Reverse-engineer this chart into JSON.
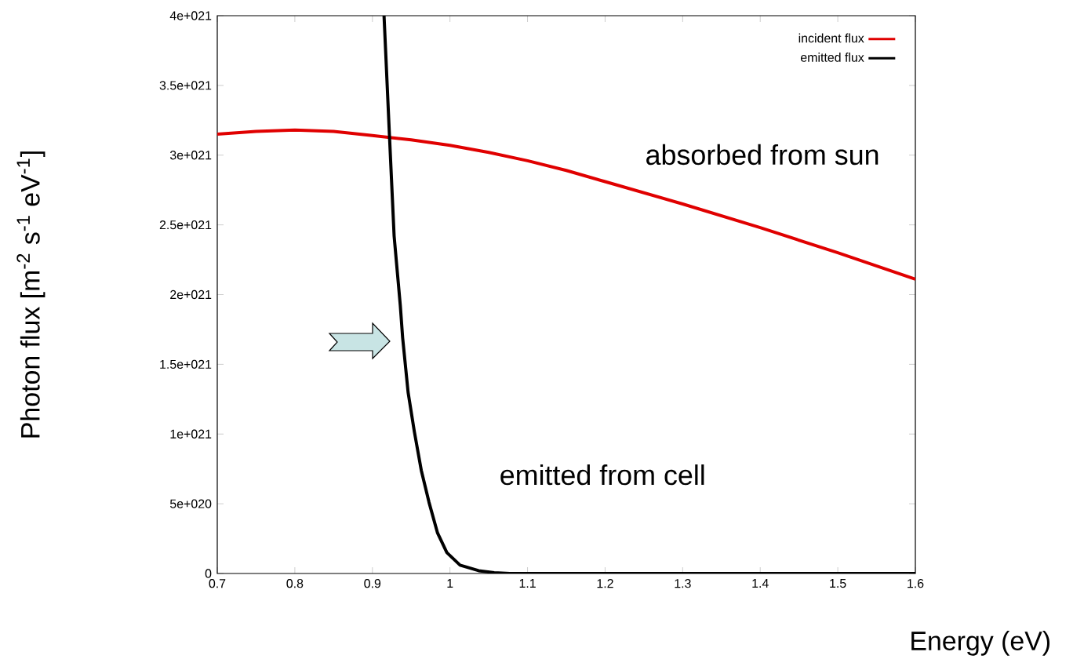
{
  "chart_data": {
    "type": "line",
    "xlabel": "Energy (eV)",
    "ylabel": "Photon flux [m$^{-2}$ s$^{-1}$ eV$^{-1}$]",
    "xlim": [
      0.7,
      1.6
    ],
    "ylim": [
      0,
      4e+21
    ],
    "xticks": [
      0.7,
      0.8,
      0.9,
      1,
      1.1,
      1.2,
      1.3,
      1.4,
      1.5,
      1.6
    ],
    "yticks": [
      0,
      {
        "value": 5e+20,
        "label": "5e+020"
      },
      {
        "value": 1e+21,
        "label": "1e+021"
      },
      {
        "value": 1.5e+21,
        "label": "1.5e+021"
      },
      {
        "value": 2e+21,
        "label": "2e+021"
      },
      {
        "value": 2.5e+21,
        "label": "2.5e+021"
      },
      {
        "value": 3e+21,
        "label": "3e+021"
      },
      {
        "value": 3.5e+21,
        "label": "3.5e+021"
      },
      {
        "value": 4e+21,
        "label": "4e+021"
      }
    ],
    "legend": "top right",
    "marker": "none",
    "line_style": "solid",
    "series": [
      {
        "name": "incident flux",
        "color": "#e00000",
        "x": [
          0.7,
          0.75,
          0.8,
          0.85,
          0.9,
          0.95,
          1.0,
          1.05,
          1.1,
          1.15,
          1.2,
          1.3,
          1.4,
          1.5,
          1.6
        ],
        "values": [
          3.15e+21,
          3.17e+21,
          3.18e+21,
          3.17e+21,
          3.14e+21,
          3.11e+21,
          3.07e+21,
          3.02e+21,
          2.96e+21,
          2.89e+21,
          2.81e+21,
          2.65e+21,
          2.48e+21,
          2.3e+21,
          2.11e+21
        ]
      },
      {
        "name": "emitted flux",
        "color": "#000000",
        "x": [
          0.915,
          0.922,
          0.928,
          0.936,
          0.939,
          0.946,
          0.954,
          0.963,
          0.973,
          0.984,
          0.996,
          1.013,
          1.037,
          1.057,
          1.077,
          1.1,
          1.2,
          1.3,
          1.4,
          1.5,
          1.6
        ],
        "values": [
          4e+21,
          3.14e+21,
          2.42e+21,
          1.92e+21,
          1.69e+21,
          1.3e+21,
          1.02e+21,
          7.4e+20,
          5.1e+20,
          2.9e+20,
          1.5e+20,
          6e+19,
          2e+19,
          6e+18,
          0,
          0,
          0,
          0,
          0,
          0,
          0
        ]
      }
    ],
    "annotations": [
      "absorbed from sun",
      "emitted from cell"
    ]
  }
}
